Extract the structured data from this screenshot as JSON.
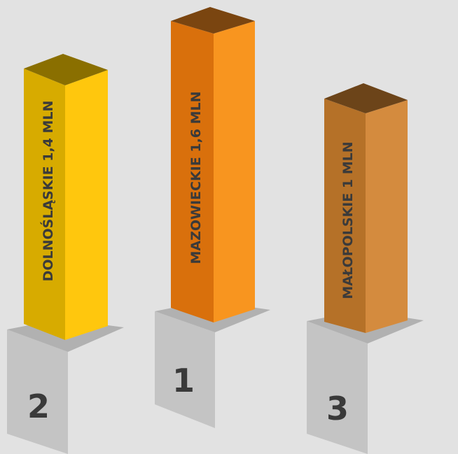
{
  "chart_data": {
    "type": "bar",
    "categories": [
      "DOLNOŚLĄSKIE 1,4 MLN",
      "MAZOWIECKIE 1,6 MLN",
      "MAŁOPOLSKIE 1 MLN"
    ],
    "values": [
      1.4,
      1.6,
      1.0
    ],
    "ranks": [
      "2",
      "1",
      "3"
    ],
    "colors": {
      "bar_front": [
        "#d7ab00",
        "#d9700c",
        "#b57128"
      ],
      "bar_side": [
        "#ffc70d",
        "#f8951f",
        "#d48b3e"
      ],
      "bar_top": [
        "#8a6f00",
        "#7a4510",
        "#6c4419"
      ],
      "pedestal_front": "#c4c4c4",
      "pedestal_top": "#b1b1b1",
      "background": "#e2e2e2"
    }
  }
}
